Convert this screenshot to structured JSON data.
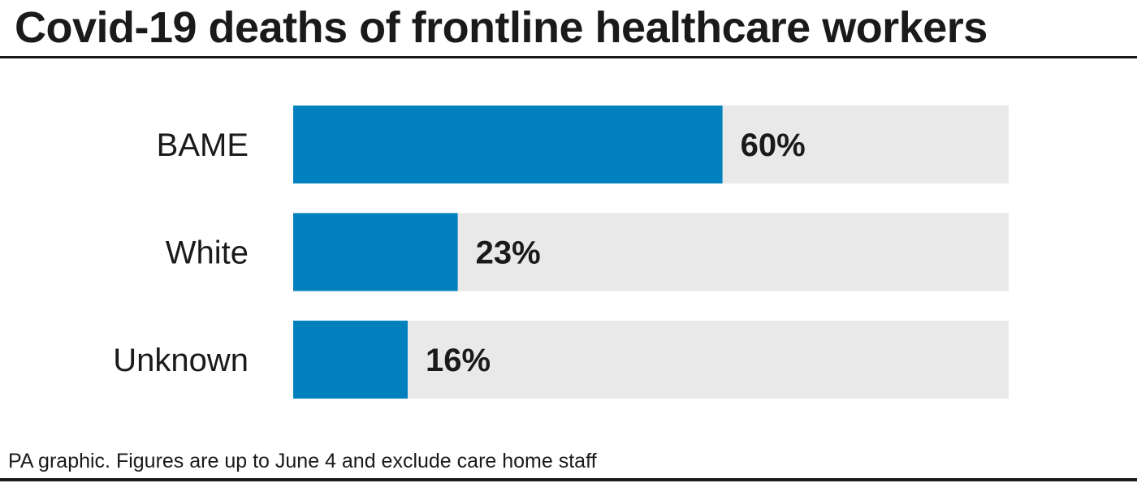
{
  "chart_data": {
    "type": "bar",
    "orientation": "horizontal",
    "title": "Covid-19 deaths of frontline healthcare workers",
    "categories": [
      "BAME",
      "White",
      "Unknown"
    ],
    "values": [
      60,
      23,
      16
    ],
    "value_labels": [
      "60%",
      "23%",
      "16%"
    ],
    "xlim": [
      0,
      100
    ],
    "grid": false,
    "colors": {
      "bar": "#0081be",
      "track": "#e8e9e8",
      "text": "#1a1a1a"
    }
  },
  "source": "PA graphic. Figures are up to June 4 and exclude care home staff"
}
